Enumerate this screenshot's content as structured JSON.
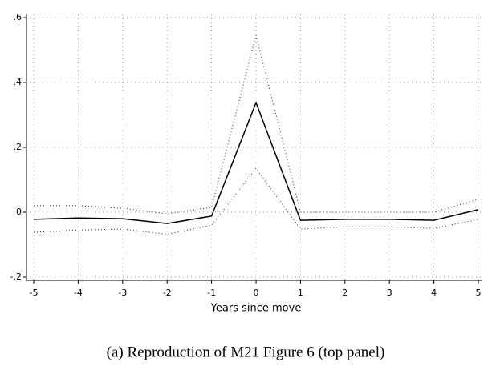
{
  "chart_data": {
    "type": "line",
    "xlabel": "Years since move",
    "caption": "(a) Reproduction of M21 Figure 6 (top panel)",
    "x": [
      -5,
      -4,
      -3,
      -2,
      -1,
      0,
      1,
      2,
      3,
      4,
      5
    ],
    "series": [
      {
        "color": "#000000",
        "dotted": false,
        "values": [
          -0.022,
          -0.018,
          -0.02,
          -0.035,
          -0.012,
          0.338,
          -0.025,
          -0.022,
          -0.022,
          -0.025,
          0.008
        ]
      },
      {
        "color": "#333333",
        "dotted": true,
        "values": [
          0.02,
          0.02,
          0.012,
          -0.005,
          0.015,
          0.545,
          0.0,
          0.0,
          0.0,
          0.0,
          0.04
        ]
      },
      {
        "color": "#333333",
        "dotted": true,
        "values": [
          -0.062,
          -0.055,
          -0.052,
          -0.068,
          -0.04,
          0.135,
          -0.052,
          -0.045,
          -0.045,
          -0.05,
          -0.022
        ]
      }
    ],
    "xlim": [
      -5,
      5
    ],
    "xticks": [
      -5,
      -4,
      -3,
      -2,
      -1,
      0,
      1,
      2,
      3,
      4,
      5
    ],
    "ylim": [
      -0.2,
      0.6
    ],
    "yticks": [
      {
        "value": -0.2,
        "label": "-.2"
      },
      {
        "value": 0,
        "label": "0"
      },
      {
        "value": 0.2,
        "label": ".2"
      },
      {
        "value": 0.4,
        "label": ".4"
      },
      {
        "value": 0.6,
        "label": ".6"
      }
    ],
    "grid": true
  }
}
